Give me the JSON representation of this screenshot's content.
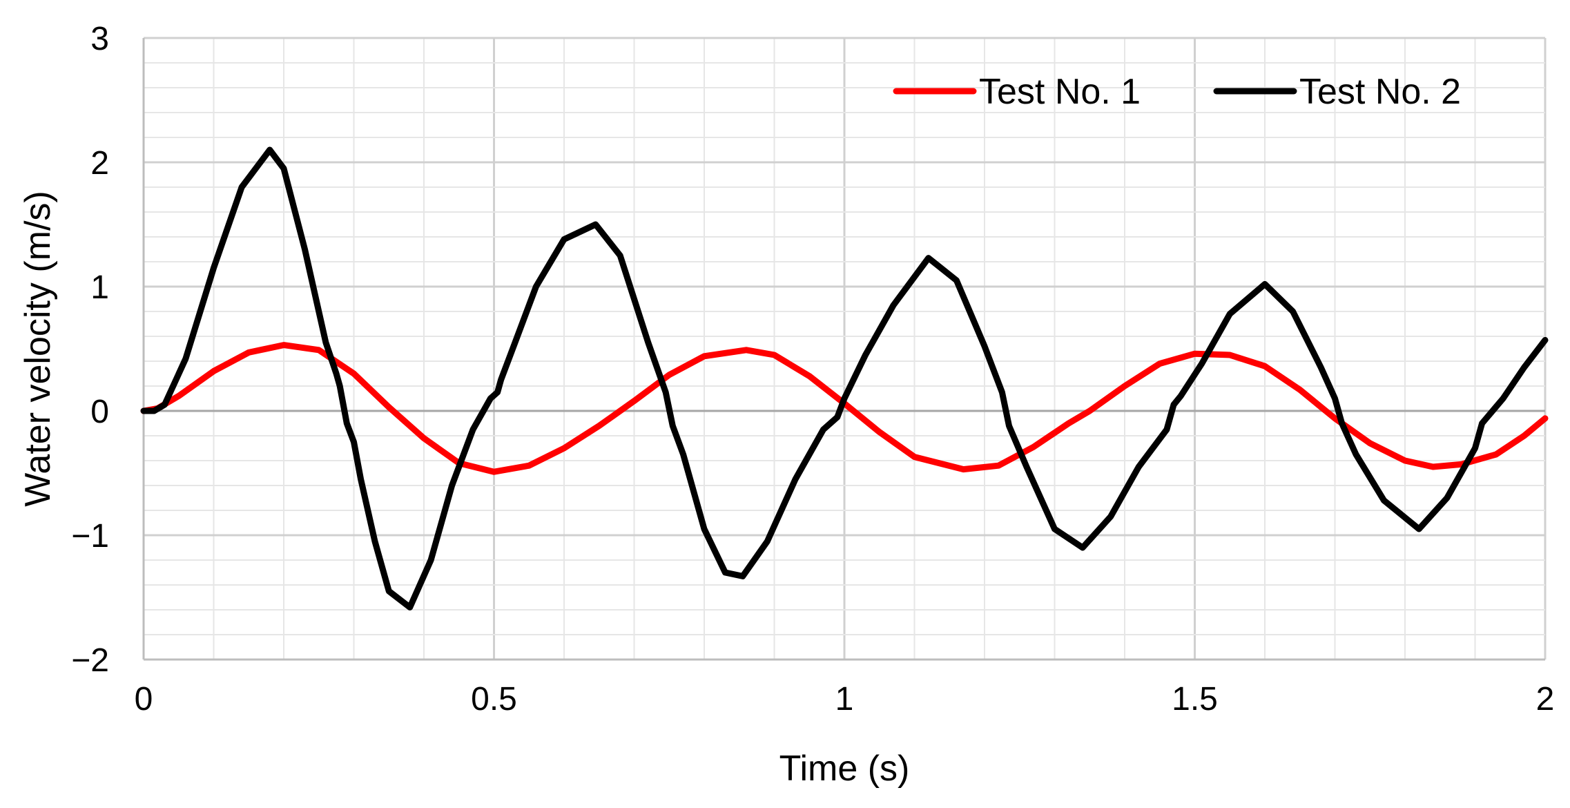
{
  "chart_data": {
    "type": "line",
    "title": "",
    "xlabel": "Time (s)",
    "ylabel": "Water velocity (m/s)",
    "xlim": [
      0,
      2
    ],
    "ylim": [
      -2,
      3
    ],
    "x_ticks": [
      "0",
      "0.5",
      "1",
      "1.5",
      "2"
    ],
    "y_ticks": [
      "3",
      "2",
      "1",
      "0",
      "−1",
      "−2"
    ],
    "x_tick_values": [
      0,
      0.5,
      1,
      1.5,
      2
    ],
    "y_tick_values": [
      3,
      2,
      1,
      0,
      -1,
      -2
    ],
    "grid": true,
    "legend_position": "top-right",
    "series": [
      {
        "name": "Test No. 1",
        "color": "#ff0000",
        "x": [
          0,
          0.02,
          0.05,
          0.1,
          0.15,
          0.2,
          0.25,
          0.3,
          0.35,
          0.4,
          0.45,
          0.5,
          0.55,
          0.6,
          0.65,
          0.7,
          0.75,
          0.8,
          0.86,
          0.9,
          0.95,
          1.0,
          1.05,
          1.1,
          1.17,
          1.22,
          1.27,
          1.32,
          1.35,
          1.4,
          1.45,
          1.5,
          1.55,
          1.6,
          1.65,
          1.7,
          1.75,
          1.8,
          1.84,
          1.88,
          1.93,
          1.97,
          2.0
        ],
        "y": [
          0,
          0.02,
          0.12,
          0.32,
          0.47,
          0.53,
          0.49,
          0.3,
          0.03,
          -0.22,
          -0.42,
          -0.49,
          -0.44,
          -0.3,
          -0.12,
          0.08,
          0.29,
          0.44,
          0.49,
          0.45,
          0.28,
          0.06,
          -0.17,
          -0.37,
          -0.47,
          -0.44,
          -0.29,
          -0.1,
          0.0,
          0.2,
          0.38,
          0.46,
          0.45,
          0.36,
          0.17,
          -0.06,
          -0.26,
          -0.4,
          -0.45,
          -0.43,
          -0.35,
          -0.2,
          -0.06
        ]
      },
      {
        "name": "Test No. 2",
        "color": "#000000",
        "x": [
          0,
          0.015,
          0.03,
          0.06,
          0.1,
          0.14,
          0.18,
          0.2,
          0.23,
          0.26,
          0.275,
          0.28,
          0.29,
          0.3,
          0.31,
          0.33,
          0.35,
          0.38,
          0.41,
          0.44,
          0.47,
          0.495,
          0.505,
          0.51,
          0.53,
          0.56,
          0.6,
          0.645,
          0.68,
          0.72,
          0.745,
          0.755,
          0.77,
          0.8,
          0.83,
          0.855,
          0.89,
          0.93,
          0.97,
          0.99,
          1.0,
          1.03,
          1.07,
          1.12,
          1.16,
          1.2,
          1.225,
          1.235,
          1.26,
          1.3,
          1.34,
          1.38,
          1.42,
          1.46,
          1.47,
          1.48,
          1.51,
          1.55,
          1.6,
          1.64,
          1.68,
          1.7,
          1.71,
          1.73,
          1.77,
          1.82,
          1.86,
          1.9,
          1.91,
          1.94,
          1.97,
          2.0
        ],
        "y": [
          0,
          0.0,
          0.05,
          0.42,
          1.15,
          1.8,
          2.1,
          1.95,
          1.3,
          0.55,
          0.3,
          0.2,
          -0.1,
          -0.25,
          -0.55,
          -1.05,
          -1.45,
          -1.58,
          -1.2,
          -0.6,
          -0.15,
          0.1,
          0.15,
          0.25,
          0.55,
          1.0,
          1.38,
          1.5,
          1.25,
          0.55,
          0.15,
          -0.12,
          -0.35,
          -0.95,
          -1.3,
          -1.33,
          -1.05,
          -0.55,
          -0.15,
          -0.05,
          0.1,
          0.45,
          0.85,
          1.23,
          1.05,
          0.52,
          0.15,
          -0.12,
          -0.45,
          -0.95,
          -1.1,
          -0.85,
          -0.45,
          -0.15,
          0.05,
          0.12,
          0.38,
          0.78,
          1.02,
          0.8,
          0.35,
          0.1,
          -0.1,
          -0.35,
          -0.72,
          -0.95,
          -0.7,
          -0.3,
          -0.1,
          0.1,
          0.35,
          0.57
        ]
      }
    ]
  }
}
